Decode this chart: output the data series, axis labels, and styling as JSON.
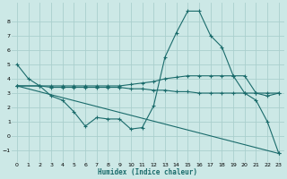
{
  "xlabel": "Humidex (Indice chaleur)",
  "bg_color": "#cce8e6",
  "grid_color": "#aacfcd",
  "line_color": "#1a6b6b",
  "xlim": [
    -0.5,
    23.5
  ],
  "ylim": [
    -1.8,
    9.3
  ],
  "yticks": [
    -1,
    0,
    1,
    2,
    3,
    4,
    5,
    6,
    7,
    8
  ],
  "xticks": [
    0,
    1,
    2,
    3,
    4,
    5,
    6,
    7,
    8,
    9,
    10,
    11,
    12,
    13,
    14,
    15,
    16,
    17,
    18,
    19,
    20,
    21,
    22,
    23
  ],
  "line1_x": [
    0,
    1,
    2,
    3,
    4,
    5,
    6,
    7,
    8,
    9,
    10,
    11,
    12,
    13,
    14,
    15,
    16,
    17,
    18,
    19,
    20,
    21,
    22,
    23
  ],
  "line1_y": [
    5.0,
    4.0,
    3.5,
    2.8,
    2.5,
    1.7,
    0.7,
    1.3,
    1.2,
    1.2,
    0.5,
    0.6,
    2.1,
    5.5,
    7.2,
    8.7,
    8.7,
    7.0,
    6.2,
    4.2,
    3.0,
    2.5,
    1.0,
    -1.2
  ],
  "line2_x": [
    0,
    2,
    3,
    4,
    5,
    6,
    7,
    8,
    9,
    10,
    11,
    12,
    13,
    14,
    15,
    16,
    17,
    18,
    19,
    20,
    21,
    22,
    23
  ],
  "line2_y": [
    3.5,
    3.5,
    3.5,
    3.5,
    3.5,
    3.5,
    3.5,
    3.5,
    3.5,
    3.6,
    3.7,
    3.8,
    4.0,
    4.1,
    4.2,
    4.2,
    4.2,
    4.2,
    4.2,
    4.2,
    3.0,
    2.8,
    3.0
  ],
  "line3_x": [
    0,
    2,
    3,
    4,
    5,
    6,
    7,
    8,
    9,
    10,
    11,
    12,
    13,
    14,
    15,
    16,
    17,
    18,
    19,
    20,
    21,
    22,
    23
  ],
  "line3_y": [
    3.5,
    3.5,
    3.4,
    3.4,
    3.4,
    3.4,
    3.4,
    3.4,
    3.4,
    3.3,
    3.3,
    3.2,
    3.2,
    3.1,
    3.1,
    3.0,
    3.0,
    3.0,
    3.0,
    3.0,
    3.0,
    3.0,
    3.0
  ],
  "line4_x": [
    0,
    23
  ],
  "line4_y": [
    3.5,
    -1.2
  ]
}
